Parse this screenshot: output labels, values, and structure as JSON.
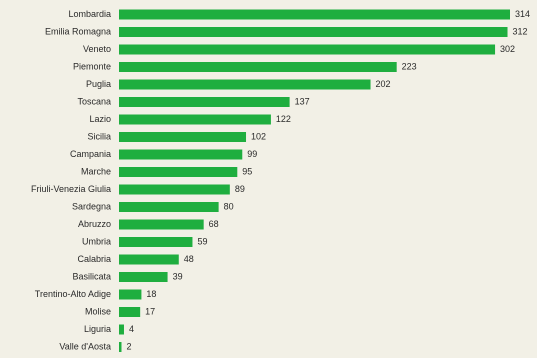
{
  "chart_data": {
    "type": "bar",
    "orientation": "horizontal",
    "title": "",
    "xlabel": "",
    "ylabel": "",
    "categories": [
      "Lombardia",
      "Emilia Romagna",
      "Veneto",
      "Piemonte",
      "Puglia",
      "Toscana",
      "Lazio",
      "Sicilia",
      "Campania",
      "Marche",
      "Friuli-Venezia Giulia",
      "Sardegna",
      "Abruzzo",
      "Umbria",
      "Calabria",
      "Basilicata",
      "Trentino-Alto Adige",
      "Molise",
      "Liguria",
      "Valle d'Aosta"
    ],
    "values": [
      314,
      312,
      302,
      223,
      202,
      137,
      122,
      102,
      99,
      95,
      89,
      80,
      68,
      59,
      48,
      39,
      18,
      17,
      4,
      2
    ],
    "xlim": [
      0,
      314
    ],
    "grid": false,
    "legend": "none",
    "bar_color": "#1fae3f",
    "background_color": "#f2f0e6",
    "text_color": "#2a2a2a"
  }
}
